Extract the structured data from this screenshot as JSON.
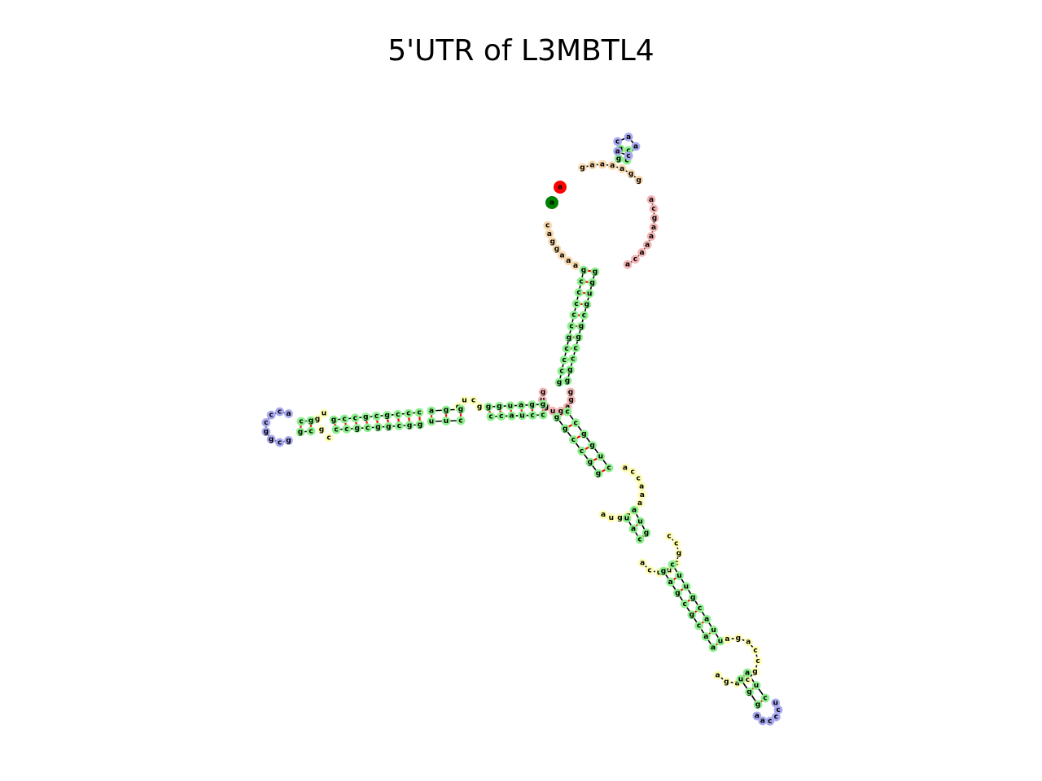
{
  "title": "5'UTR of L3MBTL4",
  "colors": {
    "stem": "#8ef08e",
    "hairpin_loop": "#a9a9f0",
    "multiloop": "#f4b6b6",
    "interior_loop": "#fdfdb4",
    "external": "#f9d9ae",
    "backbone": "#000000",
    "base_pair": "#ff0000",
    "start_marker": "#008000",
    "end_marker": "#ff0000"
  },
  "sequence": {
    "five_prime_tail": "aaaggac",
    "top_stem_5p": "gcccccgcccgcg",
    "hairpin_top_stem_5p": "g",
    "hairpin_top_loop": "acaa",
    "upper_right_loop": "caaaagcaaaggaa",
    "left_arm_closing": "ugcccgccccggcgcagagggagc",
    "left_hairpin_loop": "acccggc",
    "right_arm": "ggccgcucccaaaauuggc",
    "right_hairpin_loop": "uccca",
    "three_prime_end": "a"
  }
}
